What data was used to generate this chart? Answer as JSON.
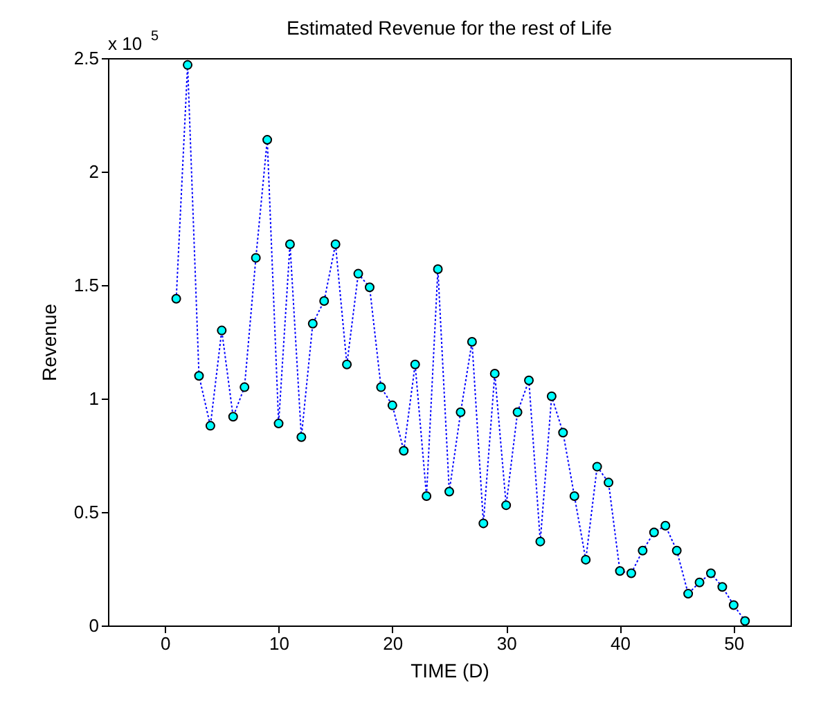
{
  "chart_data": {
    "type": "line",
    "title": "Estimated Revenue for the rest of Life",
    "xlabel": "TIME (D)",
    "ylabel": "Revenue",
    "annotations": [
      "x 10$^{5}$"
    ],
    "x": [
      1,
      2,
      3,
      4,
      5,
      6,
      7,
      8,
      9,
      10,
      11,
      12,
      13,
      14,
      15,
      16,
      17,
      18,
      19,
      20,
      21,
      22,
      23,
      24,
      25,
      26,
      27,
      28,
      29,
      30,
      31,
      32,
      33,
      34,
      35,
      36,
      37,
      38,
      39,
      40,
      41,
      42,
      43,
      44,
      45,
      46,
      47,
      48,
      49,
      50,
      51
    ],
    "series": [
      {
        "color": "#0000ff",
        "values": [
          1.44,
          2.47,
          1.1,
          0.88,
          1.3,
          0.92,
          1.05,
          1.62,
          2.14,
          0.89,
          1.68,
          0.83,
          1.33,
          1.43,
          1.68,
          1.15,
          1.55,
          1.49,
          1.05,
          0.97,
          0.77,
          1.15,
          0.57,
          1.57,
          0.59,
          0.94,
          1.25,
          0.45,
          1.11,
          0.53,
          0.94,
          1.08,
          0.37,
          1.01,
          0.85,
          0.57,
          0.29,
          0.7,
          0.63,
          0.24,
          0.23,
          0.33,
          0.41,
          0.44,
          0.33,
          0.14,
          0.19,
          0.23,
          0.17,
          0.09,
          0.02
        ]
      }
    ],
    "xlim": [
      -5,
      55
    ],
    "xticks": [
      0,
      10,
      20,
      30,
      40,
      50
    ],
    "ylim": [
      0,
      2.5
    ],
    "yticks": [
      0,
      0.5,
      1,
      1.5,
      2,
      2.5
    ],
    "grid": false,
    "legend": false,
    "marker": "circle",
    "line_style": "dotted"
  }
}
